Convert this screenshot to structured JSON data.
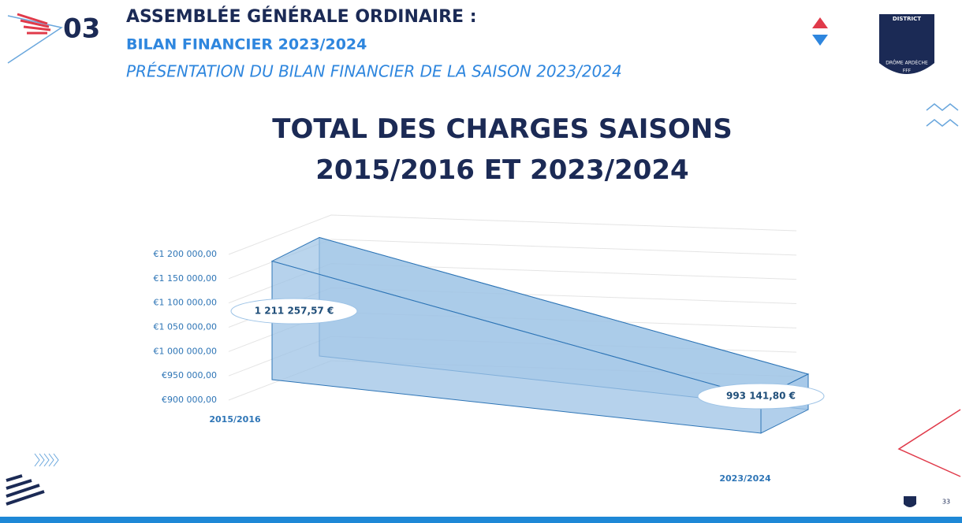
{
  "header": {
    "number": "03",
    "title": "ASSEMBLÉE GÉNÉRALE ORDINAIRE :",
    "subtitle": "BILAN FINANCIER 2023/2024",
    "description": "PRÉSENTATION DU BILAN FINANCIER DE LA SAISON 2023/2024"
  },
  "logo": {
    "top": "DISTRICT",
    "name": "DRÔME ARDÈCHE",
    "org": "FFF"
  },
  "footer": {
    "page": "33"
  },
  "chart_data": {
    "type": "area3d",
    "title": "TOTAL DES CHARGES SAISONS 2015/2016 ET 2023/2024",
    "categories": [
      "2015/2016",
      "2023/2024"
    ],
    "values": [
      1211257.57,
      993141.8
    ],
    "value_labels": [
      "1 211 257,57 €",
      "993 141,80 €"
    ],
    "color": "#9dc3e6",
    "edge_color": "#2e75b6",
    "ylim": [
      900000,
      1200000
    ],
    "yticks": [
      {
        "value": 900000,
        "label": "€900 000,00"
      },
      {
        "value": 950000,
        "label": "€950 000,00"
      },
      {
        "value": 1000000,
        "label": "€1 000 000,00"
      },
      {
        "value": 1050000,
        "label": "€1 050 000,00"
      },
      {
        "value": 1100000,
        "label": "€1 100 000,00"
      },
      {
        "value": 1150000,
        "label": "€1 150 000,00"
      },
      {
        "value": 1200000,
        "label": "€1 200 000,00"
      }
    ],
    "grid": true
  }
}
